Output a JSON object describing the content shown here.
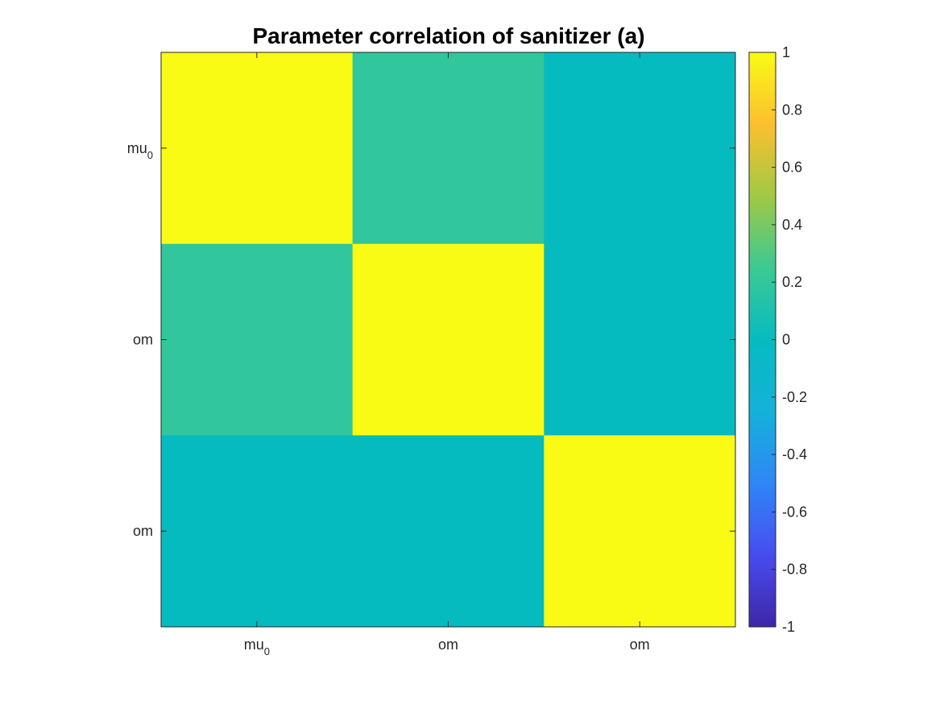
{
  "chart_data": {
    "type": "heatmap",
    "title": "Parameter correlation of sanitizer (a)",
    "x_tick_labels": [
      {
        "base": "mu",
        "sub": "0"
      },
      {
        "base": "om",
        "sub": ""
      },
      {
        "base": "om",
        "sub": ""
      }
    ],
    "y_tick_labels": [
      {
        "base": "mu",
        "sub": "0"
      },
      {
        "base": "om",
        "sub": ""
      },
      {
        "base": "om",
        "sub": ""
      }
    ],
    "matrix": [
      [
        1.0,
        0.2,
        0.0
      ],
      [
        0.2,
        1.0,
        0.0
      ],
      [
        0.0,
        0.0,
        1.0
      ]
    ],
    "clim": [
      -1,
      1
    ],
    "colorbar": {
      "ticks": [
        1,
        0.8,
        0.6,
        0.4,
        0.2,
        0,
        -0.2,
        -0.4,
        -0.6,
        -0.8,
        -1
      ],
      "tick_labels": [
        "1",
        "0.8",
        "0.6",
        "0.4",
        "0.2",
        "0",
        "-0.2",
        "-0.4",
        "-0.6",
        "-0.8",
        "-1"
      ],
      "colormap": "parula"
    },
    "grid": false,
    "legend": "none"
  }
}
